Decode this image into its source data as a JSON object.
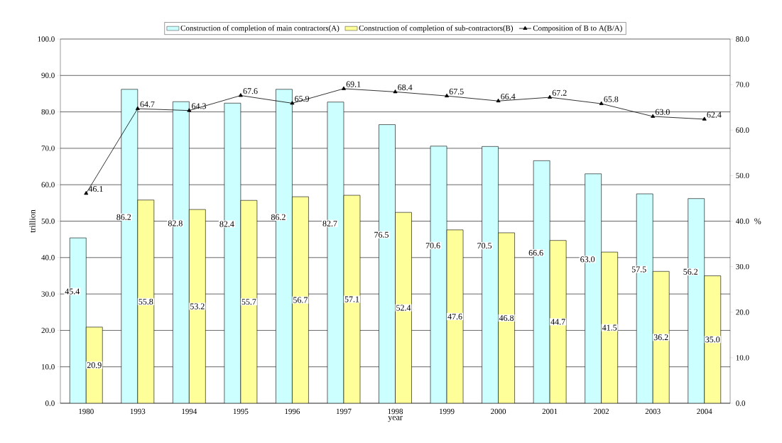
{
  "chart_data": {
    "type": "bar",
    "xlabel": "year",
    "ylabel": "trillion",
    "y2label": "%",
    "categories": [
      "1980",
      "1993",
      "1994",
      "1995",
      "1996",
      "1997",
      "1998",
      "1999",
      "2000",
      "2001",
      "2002",
      "2003",
      "2004"
    ],
    "series": [
      {
        "name": "Construction of completion of main contractors(A)",
        "color": "#ccffff",
        "values": [
          45.4,
          86.2,
          82.8,
          82.4,
          86.2,
          82.7,
          76.5,
          70.6,
          70.5,
          66.6,
          63.0,
          57.5,
          56.2
        ],
        "value_labels": [
          "45.4",
          "86.2",
          "82.8",
          "82.4",
          "86.2",
          "82.7",
          "76.5",
          "70.6",
          "70.5",
          "66.6",
          "63.0",
          "57.5",
          "56.2"
        ]
      },
      {
        "name": "Construction of completion of sub-contractors(B)",
        "color": "#ffff99",
        "values": [
          20.9,
          55.8,
          53.2,
          55.7,
          56.7,
          57.1,
          52.4,
          47.6,
          46.8,
          44.7,
          41.5,
          36.2,
          35.0
        ],
        "value_labels": [
          "20.9",
          "55.8",
          "53.2",
          "55.7",
          "56.7",
          "57.1",
          "52.4",
          "47.6",
          "46.8",
          "44.7",
          "41.5",
          "36.2",
          "35.0"
        ]
      },
      {
        "name": "Composition of B to A(B/A)",
        "type": "line",
        "axis": "y2",
        "color": "#000000",
        "marker": "triangle",
        "values": [
          46.1,
          64.7,
          64.3,
          67.6,
          65.9,
          69.1,
          68.4,
          67.5,
          66.4,
          67.2,
          65.8,
          63.0,
          62.4
        ],
        "value_labels": [
          "46.1",
          "64.7",
          "64.3",
          "67.6",
          "65.9",
          "69.1",
          "68.4",
          "67.5",
          "66.4",
          "67.2",
          "65.8",
          "63.0",
          "62.4"
        ]
      }
    ],
    "ylim": [
      0,
      100
    ],
    "yticks": [
      {
        "value": 0,
        "label": "0.0"
      },
      {
        "value": 10,
        "label": "10.0"
      },
      {
        "value": 20,
        "label": "20.0"
      },
      {
        "value": 30,
        "label": "30.0"
      },
      {
        "value": 40,
        "label": "40.0"
      },
      {
        "value": 50,
        "label": "50.0"
      },
      {
        "value": 60,
        "label": "60.0"
      },
      {
        "value": 70,
        "label": "70.0"
      },
      {
        "value": 80,
        "label": "80.0"
      },
      {
        "value": 90,
        "label": "90.0"
      },
      {
        "value": 100,
        "label": "100.0"
      }
    ],
    "y2lim": [
      0,
      80
    ],
    "y2ticks": [
      {
        "value": 0,
        "label": "0.0"
      },
      {
        "value": 10,
        "label": "10.0"
      },
      {
        "value": 20,
        "label": "20.0"
      },
      {
        "value": 30,
        "label": "30.0"
      },
      {
        "value": 40,
        "label": "40.0"
      },
      {
        "value": 50,
        "label": "50.0"
      },
      {
        "value": 60,
        "label": "60.0"
      },
      {
        "value": 70,
        "label": "70.0"
      },
      {
        "value": 80,
        "label": "80.0"
      }
    ],
    "grid": "y",
    "legend": "top"
  }
}
